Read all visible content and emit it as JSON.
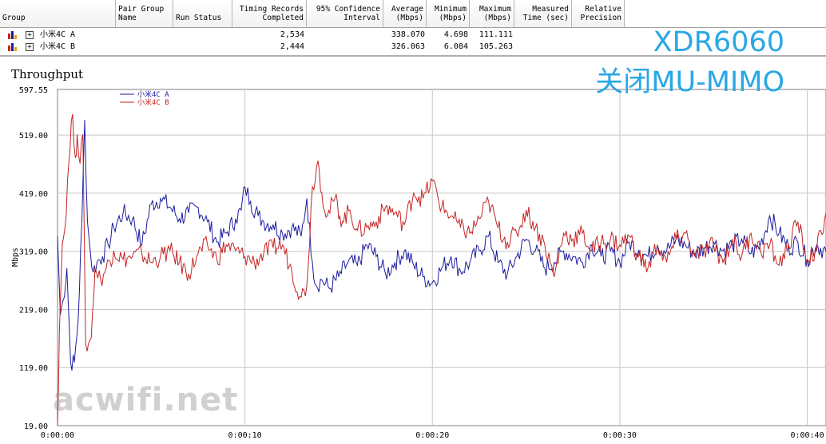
{
  "table": {
    "columns": [
      {
        "label": "Group",
        "key": "group"
      },
      {
        "label": "Pair Group\nName",
        "key": "pair_group"
      },
      {
        "label": "Run Status",
        "key": "run_status"
      },
      {
        "label": "Timing Records\nCompleted",
        "key": "records"
      },
      {
        "label": "95% Confidence\nInterval",
        "key": "ci"
      },
      {
        "label": "Average\n(Mbps)",
        "key": "avg"
      },
      {
        "label": "Minimum\n(Mbps)",
        "key": "min"
      },
      {
        "label": "Maximum\n(Mbps)",
        "key": "max"
      },
      {
        "label": "Measured\nTime (sec)",
        "key": "time"
      },
      {
        "label": "Relative\nPrecision",
        "key": "precision"
      }
    ],
    "rows": [
      {
        "group": "小米4C A",
        "records": "2,534",
        "avg": "338.070",
        "min": "4.698",
        "max": "111.111"
      },
      {
        "group": "小米4C B",
        "records": "2,444",
        "avg": "326.063",
        "min": "6.084",
        "max": "105.263"
      }
    ]
  },
  "overlay": {
    "line1": "XDR6060",
    "line2": "关闭MU-MIMO"
  },
  "watermark": "acwifi.net",
  "colors": {
    "series_a": "#1c1c9e",
    "series_b": "#c42424",
    "overlay": "#2aa7e6",
    "grid": "#c8c8c8"
  },
  "chart_data": {
    "type": "line",
    "title": "Throughput",
    "xlabel": "",
    "ylabel": "Mbps",
    "ylim": [
      19.0,
      597.55
    ],
    "yticks": [
      "19.00",
      "119.00",
      "219.00",
      "319.00",
      "419.00",
      "519.00",
      "597.55"
    ],
    "xlim": [
      0,
      41
    ],
    "xticks": [
      "0:00:00",
      "0:00:10",
      "0:00:20",
      "0:00:30",
      "0:00:40"
    ],
    "grid": true,
    "legend_placement": "top-left",
    "series": [
      {
        "name": "小米4C A",
        "color": "#1c1c9e",
        "x": [
          0,
          0.15,
          0.3,
          0.5,
          0.7,
          0.9,
          1.1,
          1.3,
          1.45,
          1.6,
          1.75,
          1.9,
          2.1,
          2.4,
          2.7,
          3,
          3.5,
          4,
          4.5,
          5,
          5.5,
          6,
          6.5,
          7,
          7.5,
          8,
          8.5,
          9,
          9.5,
          9.8,
          10,
          10.3,
          10.7,
          11,
          11.5,
          12,
          12.5,
          13,
          13.3,
          13.6,
          13.8,
          14.1,
          14.5,
          15,
          15.5,
          16,
          16.5,
          17,
          17.5,
          18,
          18.5,
          19,
          19.5,
          20,
          20.5,
          21,
          21.5,
          22,
          22.5,
          23,
          23.5,
          24,
          24.5,
          25,
          25.5,
          26,
          26.5,
          27,
          27.5,
          28,
          28.5,
          29,
          29.5,
          30,
          30.5,
          31,
          31.5,
          32,
          32.5,
          33,
          33.5,
          34,
          34.5,
          35,
          35.5,
          36,
          36.5,
          37,
          37.5,
          38,
          38.5,
          39,
          39.5,
          40,
          40.5,
          41
        ],
        "y": [
          345,
          210,
          235,
          290,
          128,
          128,
          200,
          370,
          545,
          370,
          318,
          283,
          300,
          310,
          330,
          360,
          385,
          375,
          330,
          400,
          410,
          395,
          375,
          385,
          395,
          370,
          335,
          350,
          375,
          390,
          430,
          405,
          380,
          370,
          365,
          350,
          360,
          345,
          410,
          300,
          260,
          270,
          255,
          275,
          300,
          295,
          330,
          310,
          280,
          300,
          320,
          295,
          275,
          265,
          290,
          310,
          285,
          300,
          320,
          345,
          300,
          280,
          310,
          340,
          320,
          290,
          300,
          320,
          310,
          300,
          330,
          310,
          320,
          300,
          335,
          320,
          310,
          330,
          320,
          340,
          330,
          315,
          325,
          335,
          320,
          330,
          340,
          315,
          330,
          380,
          350,
          325,
          335,
          305,
          330,
          318
        ]
      },
      {
        "name": "小米4C B",
        "color": "#c42424",
        "x": [
          0,
          0.1,
          0.25,
          0.4,
          0.6,
          0.8,
          0.95,
          1.05,
          1.2,
          1.35,
          1.5,
          1.65,
          1.8,
          2,
          2.3,
          2.6,
          3,
          3.5,
          4,
          4.5,
          5,
          5.5,
          6,
          6.5,
          7,
          7.5,
          8,
          8.5,
          9,
          9.5,
          10,
          10.5,
          11,
          11.5,
          12,
          12.5,
          13,
          13.3,
          13.6,
          13.9,
          14.1,
          14.4,
          14.8,
          15.2,
          15.6,
          16,
          16.5,
          17,
          17.5,
          18,
          18.5,
          19,
          19.5,
          20,
          20.5,
          21,
          21.5,
          22,
          22.5,
          23,
          23.5,
          24,
          24.5,
          25,
          25.5,
          26,
          26.5,
          27,
          27.5,
          28,
          28.5,
          29,
          29.5,
          30,
          30.5,
          31,
          31.5,
          32,
          32.5,
          33,
          33.5,
          34,
          34.5,
          35,
          35.5,
          36,
          36.5,
          37,
          37.5,
          38,
          38.5,
          39,
          39.5,
          40,
          40.5,
          41
        ],
        "y": [
          19,
          180,
          330,
          360,
          470,
          555,
          480,
          520,
          470,
          520,
          160,
          160,
          170,
          290,
          270,
          290,
          320,
          305,
          310,
          315,
          300,
          310,
          320,
          300,
          280,
          315,
          330,
          305,
          330,
          320,
          310,
          300,
          315,
          325,
          330,
          285,
          240,
          260,
          430,
          475,
          420,
          380,
          410,
          370,
          390,
          355,
          360,
          370,
          395,
          385,
          365,
          420,
          410,
          440,
          395,
          380,
          360,
          350,
          375,
          405,
          360,
          335,
          350,
          390,
          360,
          330,
          275,
          350,
          340,
          350,
          320,
          335,
          340,
          330,
          345,
          310,
          290,
          330,
          300,
          340,
          350,
          310,
          320,
          330,
          300,
          340,
          310,
          350,
          320,
          330,
          295,
          330,
          370,
          305,
          320,
          385
        ]
      }
    ]
  }
}
